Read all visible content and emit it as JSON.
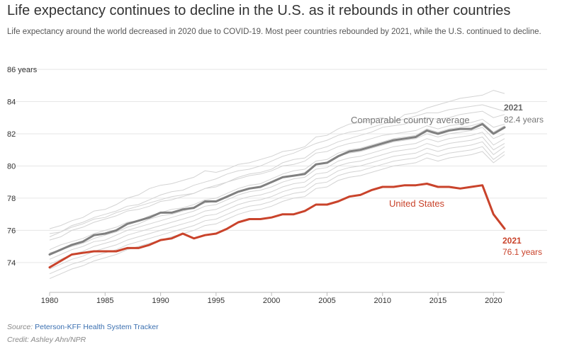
{
  "header": {
    "title": "Life expectancy continues to decline in the U.S. as it rebounds in other countries",
    "subtitle": "Life expectancy around the world decreased in 2020 due to COVID-19. Most peer countries rebounded by 2021, while the U.S. continued to decline."
  },
  "footer": {
    "source_prefix": "Source:",
    "source_link": "Peterson-KFF Health System Tracker",
    "credit": "Credit: Ashley Ahn/NPR"
  },
  "colors": {
    "us": "#c9432b",
    "average": "#808080",
    "peers": "#d3d3d3",
    "grid": "#e6e6e6",
    "text": "#333333"
  },
  "chart_data": {
    "type": "line",
    "title": "Life expectancy continues to decline in the U.S. as it rebounds in other countries",
    "ylim": [
      72.5,
      86
    ],
    "y_ticks": [
      74,
      76,
      78,
      80,
      82,
      84,
      86
    ],
    "y_tick_labels": [
      "74",
      "76",
      "78",
      "80",
      "82",
      "84",
      "86 years"
    ],
    "xlim": [
      1980,
      2021
    ],
    "x_ticks": [
      1980,
      1985,
      1990,
      1995,
      2000,
      2005,
      2010,
      2015,
      2020
    ],
    "x": [
      1980,
      1981,
      1982,
      1983,
      1984,
      1985,
      1986,
      1987,
      1988,
      1989,
      1990,
      1991,
      1992,
      1993,
      1994,
      1995,
      1996,
      1997,
      1998,
      1999,
      2000,
      2001,
      2002,
      2003,
      2004,
      2005,
      2006,
      2007,
      2008,
      2009,
      2010,
      2011,
      2012,
      2013,
      2014,
      2015,
      2016,
      2017,
      2018,
      2019,
      2020,
      2021
    ],
    "series": [
      {
        "name": "United States",
        "role": "us",
        "values": [
          73.7,
          74.1,
          74.5,
          74.6,
          74.7,
          74.7,
          74.7,
          74.9,
          74.9,
          75.1,
          75.4,
          75.5,
          75.8,
          75.5,
          75.7,
          75.8,
          76.1,
          76.5,
          76.7,
          76.7,
          76.8,
          77.0,
          77.0,
          77.2,
          77.6,
          77.6,
          77.8,
          78.1,
          78.2,
          78.5,
          78.7,
          78.7,
          78.8,
          78.8,
          78.9,
          78.7,
          78.7,
          78.6,
          78.7,
          78.8,
          77.0,
          76.1
        ]
      },
      {
        "name": "Comparable country average",
        "role": "average",
        "values": [
          74.5,
          74.8,
          75.1,
          75.3,
          75.7,
          75.8,
          76.0,
          76.4,
          76.6,
          76.8,
          77.1,
          77.1,
          77.3,
          77.4,
          77.8,
          77.8,
          78.1,
          78.4,
          78.6,
          78.7,
          79.0,
          79.3,
          79.4,
          79.5,
          80.1,
          80.2,
          80.6,
          80.9,
          81.0,
          81.2,
          81.4,
          81.6,
          81.7,
          81.8,
          82.2,
          82.0,
          82.2,
          82.3,
          82.3,
          82.6,
          82.0,
          82.4
        ]
      }
    ],
    "peer_countries": [
      [
        76.1,
        76.3,
        76.6,
        76.8,
        77.2,
        77.3,
        77.6,
        78.0,
        78.2,
        78.6,
        78.8,
        78.9,
        79.1,
        79.3,
        79.7,
        79.6,
        79.8,
        80.1,
        80.2,
        80.4,
        80.6,
        80.9,
        81.0,
        81.2,
        81.8,
        81.9,
        82.3,
        82.6,
        82.7,
        82.9,
        83.0,
        82.7,
        83.2,
        83.3,
        83.6,
        83.8,
        84.0,
        84.2,
        84.3,
        84.4,
        84.7,
        84.5
      ],
      [
        75.8,
        75.9,
        76.3,
        76.5,
        76.8,
        77.0,
        77.2,
        77.5,
        77.6,
        77.9,
        78.2,
        78.4,
        78.5,
        78.8,
        79.0,
        79.2,
        79.5,
        79.7,
        79.8,
        80.0,
        80.3,
        80.6,
        80.8,
        81.1,
        81.4,
        81.6,
        81.9,
        82.1,
        82.2,
        82.4,
        82.6,
        82.8,
        82.9,
        83.1,
        83.3,
        83.3,
        83.5,
        83.6,
        83.7,
        83.8,
        83.6,
        83.4
      ],
      [
        75.4,
        75.6,
        76.0,
        76.2,
        76.5,
        76.7,
        76.9,
        77.2,
        77.3,
        77.5,
        77.8,
        77.9,
        78.1,
        78.3,
        78.6,
        78.8,
        79.0,
        79.3,
        79.5,
        79.6,
        79.8,
        80.2,
        80.4,
        80.5,
        81.0,
        81.2,
        81.5,
        81.7,
        81.9,
        82.1,
        82.4,
        82.5,
        82.6,
        82.8,
        83.0,
        82.9,
        83.0,
        83.2,
        83.3,
        83.4,
        83.0,
        83.2
      ],
      [
        75.6,
        75.9,
        76.2,
        76.4,
        76.7,
        76.8,
        77.1,
        77.3,
        77.5,
        77.7,
        77.9,
        78.1,
        78.2,
        78.3,
        78.6,
        78.7,
        79.0,
        79.2,
        79.4,
        79.5,
        79.7,
        80.0,
        80.1,
        80.3,
        80.8,
        80.9,
        81.2,
        81.4,
        81.5,
        81.7,
        81.9,
        82.0,
        82.1,
        82.2,
        82.5,
        82.3,
        82.5,
        82.6,
        82.7,
        82.9,
        82.4,
        82.6
      ],
      [
        74.8,
        75.1,
        75.3,
        75.5,
        75.8,
        76.0,
        76.2,
        76.5,
        76.6,
        76.9,
        77.1,
        77.3,
        77.4,
        77.6,
        77.9,
        78.0,
        78.3,
        78.6,
        78.8,
        78.9,
        79.2,
        79.5,
        79.7,
        79.8,
        80.3,
        80.4,
        80.8,
        81.0,
        81.1,
        81.3,
        81.5,
        81.7,
        81.8,
        81.9,
        82.3,
        82.1,
        82.3,
        82.4,
        82.5,
        82.7,
        82.1,
        82.5
      ],
      [
        74.6,
        74.8,
        75.0,
        75.2,
        75.5,
        75.7,
        75.9,
        76.2,
        76.4,
        76.7,
        76.9,
        77.0,
        77.2,
        77.4,
        77.7,
        77.8,
        78.1,
        78.4,
        78.6,
        78.7,
        79.0,
        79.3,
        79.4,
        79.6,
        80.1,
        80.2,
        80.6,
        80.8,
        80.9,
        81.1,
        81.3,
        81.5,
        81.6,
        81.7,
        82.0,
        81.8,
        82.0,
        82.1,
        82.2,
        82.4,
        81.7,
        82.0
      ],
      [
        74.2,
        74.5,
        74.8,
        75.0,
        75.3,
        75.4,
        75.7,
        76.0,
        76.2,
        76.4,
        76.6,
        76.8,
        77.0,
        77.2,
        77.5,
        77.6,
        77.9,
        78.2,
        78.4,
        78.5,
        78.7,
        79.0,
        79.2,
        79.3,
        79.8,
        79.9,
        80.3,
        80.5,
        80.6,
        80.8,
        81.0,
        81.2,
        81.3,
        81.4,
        81.7,
        81.5,
        81.7,
        81.8,
        81.9,
        82.1,
        81.3,
        81.7
      ],
      [
        73.9,
        74.2,
        74.5,
        74.7,
        75.0,
        75.2,
        75.4,
        75.7,
        75.9,
        76.1,
        76.3,
        76.5,
        76.7,
        76.9,
        77.2,
        77.3,
        77.6,
        77.9,
        78.1,
        78.2,
        78.4,
        78.7,
        78.9,
        79.0,
        79.5,
        79.6,
        80.0,
        80.2,
        80.3,
        80.5,
        80.7,
        80.9,
        81.0,
        81.1,
        81.4,
        81.2,
        81.4,
        81.5,
        81.6,
        81.8,
        81.0,
        81.4
      ],
      [
        73.6,
        73.9,
        74.2,
        74.4,
        74.7,
        74.9,
        75.1,
        75.4,
        75.6,
        75.8,
        76.0,
        76.2,
        76.4,
        76.6,
        76.9,
        77.0,
        77.3,
        77.6,
        77.8,
        77.9,
        78.1,
        78.4,
        78.6,
        78.7,
        79.2,
        79.3,
        79.7,
        79.9,
        80.0,
        80.2,
        80.4,
        80.6,
        80.7,
        80.8,
        81.1,
        80.9,
        81.1,
        81.2,
        81.3,
        81.5,
        80.7,
        81.2
      ],
      [
        73.3,
        73.6,
        73.9,
        74.1,
        74.4,
        74.6,
        74.8,
        75.1,
        75.3,
        75.5,
        75.7,
        75.9,
        76.1,
        76.3,
        76.6,
        76.7,
        77.0,
        77.3,
        77.5,
        77.6,
        77.8,
        78.1,
        78.3,
        78.4,
        78.9,
        79.0,
        79.4,
        79.6,
        79.7,
        79.9,
        80.1,
        80.3,
        80.4,
        80.5,
        80.8,
        80.6,
        80.8,
        80.9,
        81.0,
        81.2,
        80.4,
        80.9
      ],
      [
        73.0,
        73.3,
        73.6,
        73.8,
        74.1,
        74.3,
        74.5,
        74.8,
        75.0,
        75.2,
        75.4,
        75.6,
        75.8,
        76.0,
        76.3,
        76.4,
        76.7,
        77.0,
        77.2,
        77.3,
        77.5,
        77.8,
        78.0,
        78.1,
        78.6,
        78.7,
        79.1,
        79.3,
        79.4,
        79.6,
        79.8,
        80.0,
        80.1,
        80.2,
        80.5,
        80.3,
        80.5,
        80.6,
        80.7,
        80.9,
        80.2,
        80.7
      ]
    ],
    "annotations": [
      {
        "series": "average",
        "label": "Comparable country average"
      },
      {
        "series": "average",
        "year_label": "2021",
        "value_label": "82.4 years"
      },
      {
        "series": "us",
        "label": "United States"
      },
      {
        "series": "us",
        "year_label": "2021",
        "value_label": "76.1 years"
      }
    ],
    "grid": true
  }
}
